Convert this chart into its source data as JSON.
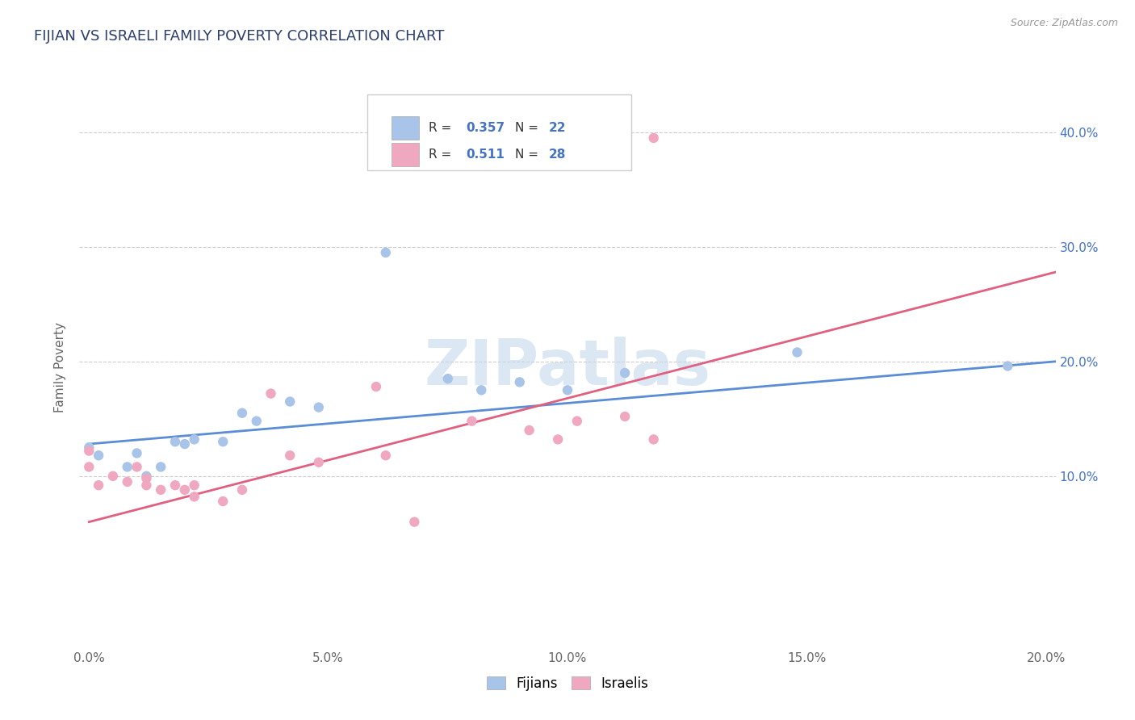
{
  "title": "FIJIAN VS ISRAELI FAMILY POVERTY CORRELATION CHART",
  "source": "Source: ZipAtlas.com",
  "ylabel": "Family Poverty",
  "watermark": "ZIPatlas",
  "xlim": [
    -0.002,
    0.202
  ],
  "ylim": [
    -0.05,
    0.44
  ],
  "xtick_vals": [
    0.0,
    0.05,
    0.1,
    0.15,
    0.2
  ],
  "xtick_labels": [
    "0.0%",
    "5.0%",
    "10.0%",
    "15.0%",
    "20.0%"
  ],
  "ytick_vals": [
    0.1,
    0.2,
    0.3,
    0.4
  ],
  "ytick_labels": [
    "10.0%",
    "20.0%",
    "30.0%",
    "40.0%"
  ],
  "fijian_color": "#a8c4e8",
  "israeli_color": "#f0a8c0",
  "fijian_line_color": "#5b8dd4",
  "israeli_line_color": "#e06080",
  "fijian_r": 0.357,
  "fijian_n": 22,
  "israeli_r": 0.511,
  "israeli_n": 28,
  "fijian_points": [
    [
      0.0,
      0.125
    ],
    [
      0.002,
      0.118
    ],
    [
      0.008,
      0.108
    ],
    [
      0.01,
      0.12
    ],
    [
      0.012,
      0.1
    ],
    [
      0.015,
      0.108
    ],
    [
      0.018,
      0.13
    ],
    [
      0.02,
      0.128
    ],
    [
      0.022,
      0.132
    ],
    [
      0.028,
      0.13
    ],
    [
      0.032,
      0.155
    ],
    [
      0.035,
      0.148
    ],
    [
      0.042,
      0.165
    ],
    [
      0.048,
      0.16
    ],
    [
      0.062,
      0.295
    ],
    [
      0.075,
      0.185
    ],
    [
      0.082,
      0.175
    ],
    [
      0.09,
      0.182
    ],
    [
      0.1,
      0.175
    ],
    [
      0.112,
      0.19
    ],
    [
      0.148,
      0.208
    ],
    [
      0.192,
      0.196
    ]
  ],
  "israeli_points": [
    [
      0.0,
      0.122
    ],
    [
      0.0,
      0.108
    ],
    [
      0.002,
      0.092
    ],
    [
      0.005,
      0.1
    ],
    [
      0.008,
      0.095
    ],
    [
      0.01,
      0.108
    ],
    [
      0.012,
      0.092
    ],
    [
      0.012,
      0.098
    ],
    [
      0.015,
      0.088
    ],
    [
      0.018,
      0.092
    ],
    [
      0.02,
      0.088
    ],
    [
      0.022,
      0.092
    ],
    [
      0.022,
      0.082
    ],
    [
      0.028,
      0.078
    ],
    [
      0.032,
      0.088
    ],
    [
      0.038,
      0.172
    ],
    [
      0.042,
      0.118
    ],
    [
      0.048,
      0.112
    ],
    [
      0.06,
      0.178
    ],
    [
      0.062,
      0.118
    ],
    [
      0.068,
      0.06
    ],
    [
      0.08,
      0.148
    ],
    [
      0.092,
      0.14
    ],
    [
      0.098,
      0.132
    ],
    [
      0.102,
      0.148
    ],
    [
      0.112,
      0.152
    ],
    [
      0.118,
      0.132
    ],
    [
      0.118,
      0.395
    ]
  ],
  "fijian_line": [
    [
      0.0,
      0.128
    ],
    [
      0.202,
      0.2
    ]
  ],
  "israeli_line": [
    [
      0.0,
      0.06
    ],
    [
      0.202,
      0.278
    ]
  ],
  "legend_fijian_label": "Fijians",
  "legend_israeli_label": "Israelis",
  "title_color": "#2c3e6b",
  "axis_label_color": "#666666",
  "tick_color": "#666666",
  "grid_color": "#cccccc",
  "background_color": "#ffffff",
  "watermark_color": "#c5d8ee",
  "stat_label_color": "#333333",
  "stat_value_color": "#4472c4"
}
